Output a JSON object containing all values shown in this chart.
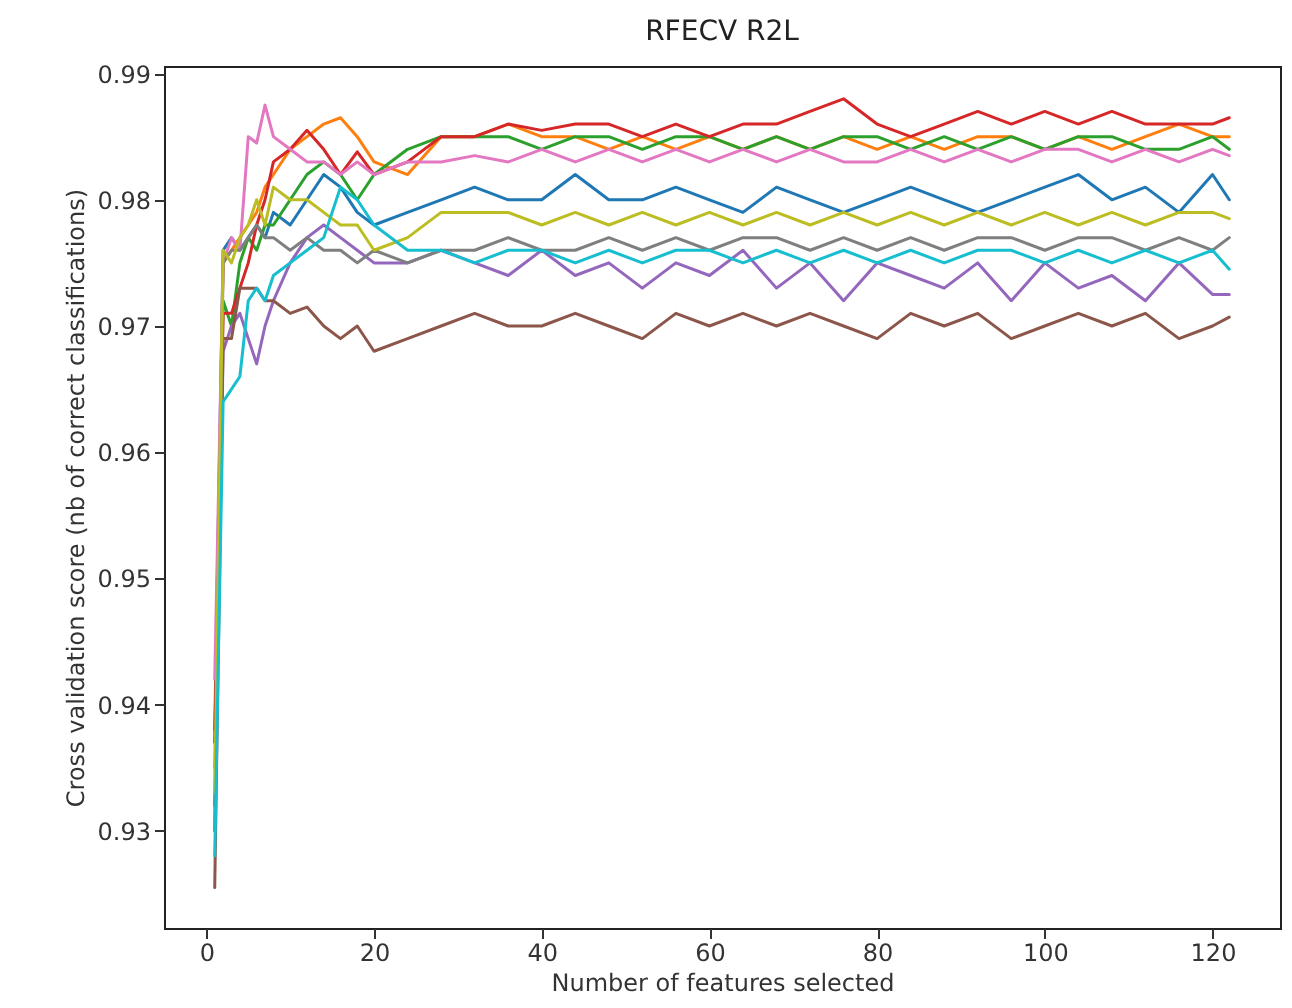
{
  "chart_data": {
    "type": "line",
    "title": "RFECV R2L",
    "xlabel": "Number of features selected",
    "ylabel": "Cross validation score (nb of correct classifications)",
    "x": [
      1,
      2,
      3,
      4,
      5,
      6,
      7,
      8,
      10,
      12,
      14,
      16,
      18,
      20,
      24,
      28,
      32,
      36,
      40,
      44,
      48,
      52,
      56,
      60,
      64,
      68,
      72,
      76,
      80,
      84,
      88,
      92,
      96,
      100,
      104,
      108,
      112,
      116,
      120,
      122
    ],
    "xlim": [
      -5.05,
      128.05
    ],
    "xticks": [
      0,
      20,
      40,
      60,
      80,
      100,
      120
    ],
    "ylim": [
      0.9223,
      0.9906
    ],
    "yticks": [
      0.93,
      0.94,
      0.95,
      0.96,
      0.97,
      0.98,
      0.99
    ],
    "series": [
      {
        "color": "#1f77b4",
        "values": [
          0.938,
          0.976,
          0.977,
          0.976,
          0.977,
          0.978,
          0.977,
          0.979,
          0.978,
          0.98,
          0.982,
          0.981,
          0.979,
          0.978,
          0.979,
          0.98,
          0.981,
          0.98,
          0.98,
          0.982,
          0.98,
          0.98,
          0.981,
          0.98,
          0.979,
          0.981,
          0.98,
          0.979,
          0.98,
          0.981,
          0.98,
          0.979,
          0.98,
          0.981,
          0.982,
          0.98,
          0.981,
          0.979,
          0.982,
          0.98
        ]
      },
      {
        "color": "#ff7f0e",
        "values": [
          0.935,
          0.975,
          0.976,
          0.977,
          0.978,
          0.979,
          0.981,
          0.982,
          0.984,
          0.985,
          0.986,
          0.9865,
          0.985,
          0.983,
          0.982,
          0.985,
          0.985,
          0.986,
          0.985,
          0.985,
          0.984,
          0.985,
          0.984,
          0.985,
          0.984,
          0.985,
          0.984,
          0.985,
          0.984,
          0.985,
          0.984,
          0.985,
          0.985,
          0.984,
          0.985,
          0.984,
          0.985,
          0.986,
          0.985,
          0.985
        ]
      },
      {
        "color": "#2ca02c",
        "values": [
          0.932,
          0.972,
          0.97,
          0.975,
          0.977,
          0.976,
          0.978,
          0.978,
          0.98,
          0.982,
          0.983,
          0.982,
          0.98,
          0.982,
          0.984,
          0.985,
          0.985,
          0.985,
          0.984,
          0.985,
          0.985,
          0.984,
          0.985,
          0.985,
          0.984,
          0.985,
          0.984,
          0.985,
          0.985,
          0.984,
          0.985,
          0.984,
          0.985,
          0.984,
          0.985,
          0.985,
          0.984,
          0.984,
          0.985,
          0.984
        ]
      },
      {
        "color": "#d62728",
        "values": [
          0.937,
          0.971,
          0.971,
          0.973,
          0.975,
          0.978,
          0.98,
          0.983,
          0.984,
          0.9855,
          0.984,
          0.982,
          0.9838,
          0.982,
          0.983,
          0.985,
          0.985,
          0.986,
          0.9855,
          0.986,
          0.986,
          0.985,
          0.986,
          0.985,
          0.986,
          0.986,
          0.987,
          0.988,
          0.986,
          0.985,
          0.986,
          0.987,
          0.986,
          0.987,
          0.986,
          0.987,
          0.986,
          0.986,
          0.986,
          0.9865
        ]
      },
      {
        "color": "#9467bd",
        "values": [
          0.93,
          0.968,
          0.97,
          0.971,
          0.969,
          0.967,
          0.97,
          0.972,
          0.975,
          0.977,
          0.978,
          0.977,
          0.976,
          0.975,
          0.975,
          0.976,
          0.975,
          0.974,
          0.976,
          0.974,
          0.975,
          0.973,
          0.975,
          0.974,
          0.976,
          0.973,
          0.975,
          0.972,
          0.975,
          0.974,
          0.973,
          0.975,
          0.972,
          0.975,
          0.973,
          0.974,
          0.972,
          0.975,
          0.9725,
          0.9725
        ]
      },
      {
        "color": "#8c564b",
        "values": [
          0.9255,
          0.969,
          0.969,
          0.973,
          0.973,
          0.973,
          0.972,
          0.972,
          0.971,
          0.9715,
          0.97,
          0.969,
          0.97,
          0.968,
          0.969,
          0.97,
          0.971,
          0.97,
          0.97,
          0.971,
          0.97,
          0.969,
          0.971,
          0.97,
          0.971,
          0.97,
          0.971,
          0.97,
          0.969,
          0.971,
          0.97,
          0.971,
          0.969,
          0.97,
          0.971,
          0.97,
          0.971,
          0.969,
          0.97,
          0.9707
        ]
      },
      {
        "color": "#e377c2",
        "values": [
          0.942,
          0.975,
          0.977,
          0.976,
          0.985,
          0.9845,
          0.9875,
          0.985,
          0.984,
          0.983,
          0.983,
          0.982,
          0.983,
          0.982,
          0.983,
          0.983,
          0.9835,
          0.983,
          0.984,
          0.983,
          0.984,
          0.983,
          0.984,
          0.983,
          0.984,
          0.983,
          0.984,
          0.983,
          0.983,
          0.984,
          0.983,
          0.984,
          0.983,
          0.984,
          0.984,
          0.983,
          0.984,
          0.983,
          0.984,
          0.9835
        ]
      },
      {
        "color": "#7f7f7f",
        "values": [
          0.93,
          0.975,
          0.976,
          0.976,
          0.977,
          0.978,
          0.977,
          0.977,
          0.976,
          0.977,
          0.976,
          0.976,
          0.975,
          0.976,
          0.975,
          0.976,
          0.976,
          0.977,
          0.976,
          0.976,
          0.977,
          0.976,
          0.977,
          0.976,
          0.977,
          0.977,
          0.976,
          0.977,
          0.976,
          0.977,
          0.976,
          0.977,
          0.977,
          0.976,
          0.977,
          0.977,
          0.976,
          0.977,
          0.976,
          0.977
        ]
      },
      {
        "color": "#bcbd22",
        "values": [
          0.933,
          0.976,
          0.975,
          0.977,
          0.978,
          0.98,
          0.978,
          0.981,
          0.98,
          0.98,
          0.979,
          0.978,
          0.978,
          0.976,
          0.977,
          0.979,
          0.979,
          0.979,
          0.978,
          0.979,
          0.978,
          0.979,
          0.978,
          0.979,
          0.978,
          0.979,
          0.978,
          0.979,
          0.978,
          0.979,
          0.978,
          0.979,
          0.978,
          0.979,
          0.978,
          0.979,
          0.978,
          0.979,
          0.979,
          0.9785
        ]
      },
      {
        "color": "#17becf",
        "values": [
          0.928,
          0.964,
          0.965,
          0.966,
          0.972,
          0.973,
          0.972,
          0.974,
          0.975,
          0.976,
          0.977,
          0.981,
          0.98,
          0.978,
          0.976,
          0.976,
          0.975,
          0.976,
          0.976,
          0.975,
          0.976,
          0.975,
          0.976,
          0.976,
          0.975,
          0.976,
          0.975,
          0.976,
          0.975,
          0.976,
          0.975,
          0.976,
          0.976,
          0.975,
          0.976,
          0.975,
          0.976,
          0.975,
          0.976,
          0.9745
        ]
      }
    ]
  }
}
